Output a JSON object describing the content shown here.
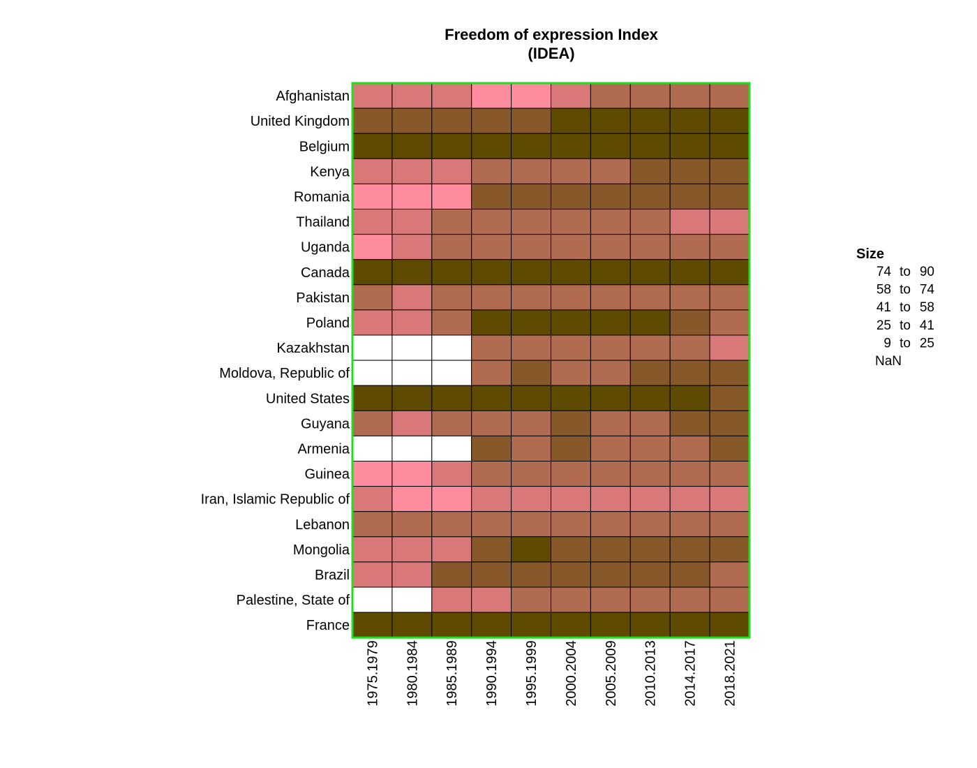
{
  "chart_data": {
    "type": "heatmap",
    "title": "Freedom of expression Index\n(IDEA)",
    "title_lines": [
      "Freedom of expression Index",
      "(IDEA)"
    ],
    "rows": [
      "Afghanistan",
      "United Kingdom",
      "Belgium",
      "Kenya",
      "Romania",
      "Thailand",
      "Uganda",
      "Canada",
      "Pakistan",
      "Poland",
      "Kazakhstan",
      "Moldova, Republic of",
      "United States",
      "Guyana",
      "Armenia",
      "Guinea",
      "Iran, Islamic Republic of",
      "Lebanon",
      "Mongolia",
      "Brazil",
      "Palestine, State of",
      "France"
    ],
    "columns": [
      "1975.1979",
      "1980.1984",
      "1985.1989",
      "1990.1994",
      "1995.1999",
      "2000.2004",
      "2005.2009",
      "2010.2013",
      "2014.2017",
      "2018.2021"
    ],
    "values": [
      [
        2,
        2,
        2,
        1,
        1,
        2,
        3,
        3,
        3,
        3
      ],
      [
        4,
        4,
        4,
        4,
        4,
        5,
        5,
        5,
        5,
        5
      ],
      [
        5,
        5,
        5,
        5,
        5,
        5,
        5,
        5,
        5,
        5
      ],
      [
        2,
        2,
        2,
        3,
        3,
        3,
        3,
        4,
        4,
        4
      ],
      [
        1,
        1,
        1,
        4,
        4,
        4,
        4,
        4,
        4,
        4
      ],
      [
        2,
        2,
        3,
        3,
        3,
        3,
        3,
        3,
        2,
        2
      ],
      [
        1,
        2,
        3,
        3,
        3,
        3,
        3,
        3,
        3,
        3
      ],
      [
        5,
        5,
        5,
        5,
        5,
        5,
        5,
        5,
        5,
        5
      ],
      [
        3,
        2,
        3,
        3,
        3,
        3,
        3,
        3,
        3,
        3
      ],
      [
        2,
        2,
        3,
        5,
        5,
        5,
        5,
        5,
        4,
        3
      ],
      [
        0,
        0,
        0,
        3,
        3,
        3,
        3,
        3,
        3,
        2
      ],
      [
        0,
        0,
        0,
        3,
        4,
        3,
        3,
        4,
        4,
        4
      ],
      [
        5,
        5,
        5,
        5,
        5,
        5,
        5,
        5,
        5,
        4
      ],
      [
        3,
        2,
        3,
        3,
        3,
        4,
        3,
        3,
        4,
        4
      ],
      [
        0,
        0,
        0,
        4,
        3,
        4,
        3,
        3,
        3,
        4
      ],
      [
        1,
        1,
        2,
        3,
        3,
        3,
        3,
        3,
        3,
        3
      ],
      [
        2,
        1,
        1,
        2,
        2,
        2,
        2,
        2,
        2,
        2
      ],
      [
        3,
        3,
        3,
        3,
        3,
        3,
        3,
        3,
        3,
        3
      ],
      [
        2,
        2,
        2,
        4,
        5,
        4,
        4,
        4,
        4,
        4
      ],
      [
        2,
        2,
        4,
        4,
        4,
        4,
        4,
        4,
        4,
        3
      ],
      [
        0,
        0,
        2,
        2,
        3,
        3,
        3,
        3,
        3,
        3
      ],
      [
        5,
        5,
        5,
        5,
        5,
        5,
        5,
        5,
        5,
        5
      ]
    ],
    "value_encoding": "legend category index: 5 = 74 to 90, 4 = 58 to 74, 3 = 41 to 58, 2 = 25 to 41, 1 = 9 to 25, 0 = NaN",
    "legend": {
      "title": "Size",
      "position": "right",
      "items": [
        {
          "index": 5,
          "low": "74",
          "sep": "to",
          "high": "90",
          "color": "#5E4A00"
        },
        {
          "index": 4,
          "low": "58",
          "sep": "to",
          "high": "74",
          "color": "#87592A"
        },
        {
          "index": 3,
          "low": "41",
          "sep": "to",
          "high": "58",
          "color": "#B06B50"
        },
        {
          "index": 2,
          "low": "25",
          "sep": "to",
          "high": "41",
          "color": "#D97878"
        },
        {
          "index": 1,
          "low": "9",
          "sep": "to",
          "high": "25",
          "color": "#FF8C9E"
        },
        {
          "index": 0,
          "label": "NaN",
          "color": "#FFFFFF"
        }
      ]
    },
    "border_color": "#22DD22",
    "grid_color": "#000000"
  }
}
